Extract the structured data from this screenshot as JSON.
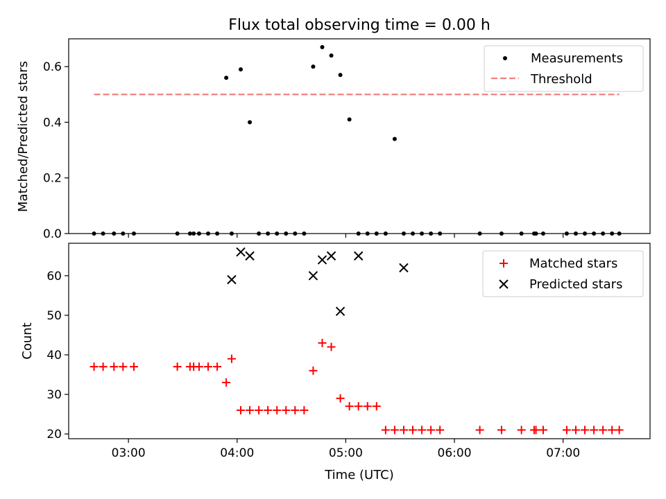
{
  "chart_data": [
    {
      "type": "scatter",
      "title": "Flux total observing time = 0.00 h",
      "xlabel": "",
      "ylabel": "Matched/Predicted stars",
      "xlim": [
        "02:27",
        "07:48"
      ],
      "ylim": [
        0,
        0.7
      ],
      "y_ticks": [
        0.0,
        0.2,
        0.4,
        0.6
      ],
      "y_tick_labels": [
        "0.0",
        "0.2",
        "0.4",
        "0.6"
      ],
      "x_ticks": [
        "03:00",
        "04:00",
        "05:00",
        "06:00",
        "07:00"
      ],
      "grid": false,
      "legend_position": "top-right",
      "series": [
        {
          "name": "Measurements",
          "marker": "dot",
          "color": "#000000",
          "x": [
            "02:41",
            "02:46",
            "02:52",
            "02:57",
            "03:03",
            "03:27",
            "03:34",
            "03:36",
            "03:39",
            "03:44",
            "03:49",
            "03:54",
            "03:57",
            "04:02",
            "04:07",
            "04:12",
            "04:17",
            "04:22",
            "04:27",
            "04:32",
            "04:37",
            "04:42",
            "04:47",
            "04:52",
            "04:57",
            "05:02",
            "05:07",
            "05:12",
            "05:17",
            "05:22",
            "05:27",
            "05:32",
            "05:37",
            "05:42",
            "05:47",
            "05:52",
            "06:14",
            "06:26",
            "06:37",
            "06:44",
            "06:45",
            "06:49",
            "07:02",
            "07:07",
            "07:12",
            "07:17",
            "07:22",
            "07:27",
            "07:31"
          ],
          "y": [
            0,
            0,
            0,
            0,
            0,
            0,
            0,
            0,
            0,
            0,
            0,
            0.56,
            0,
            0.59,
            0.4,
            0,
            0,
            0,
            0,
            0,
            0,
            0.6,
            0.67,
            0.64,
            0.57,
            0.41,
            0,
            0,
            0,
            0,
            0.34,
            0,
            0,
            0,
            0,
            0,
            0,
            0,
            0,
            0,
            0,
            0,
            0,
            0,
            0,
            0,
            0,
            0,
            0
          ]
        },
        {
          "name": "Threshold",
          "marker": "dashed-line",
          "color": "#f08080",
          "x": [
            "02:41",
            "07:31"
          ],
          "y": [
            0.5,
            0.5
          ]
        }
      ]
    },
    {
      "type": "scatter",
      "title": "",
      "xlabel": "Time (UTC)",
      "ylabel": "Count",
      "xlim": [
        "02:27",
        "07:48"
      ],
      "ylim": [
        18.8,
        68.2
      ],
      "y_ticks": [
        20,
        30,
        40,
        50,
        60
      ],
      "y_tick_labels": [
        "20",
        "30",
        "40",
        "50",
        "60"
      ],
      "x_ticks": [
        "03:00",
        "04:00",
        "05:00",
        "06:00",
        "07:00"
      ],
      "grid": false,
      "legend_position": "top-right",
      "series": [
        {
          "name": "Matched stars",
          "marker": "plus",
          "color": "#ff0000",
          "x": [
            "02:41",
            "02:46",
            "02:52",
            "02:57",
            "03:03",
            "03:27",
            "03:34",
            "03:36",
            "03:39",
            "03:44",
            "03:49",
            "03:54",
            "03:57",
            "04:02",
            "04:07",
            "04:12",
            "04:17",
            "04:22",
            "04:27",
            "04:32",
            "04:37",
            "04:42",
            "04:47",
            "04:52",
            "04:57",
            "05:02",
            "05:07",
            "05:12",
            "05:17",
            "05:22",
            "05:27",
            "05:32",
            "05:37",
            "05:42",
            "05:47",
            "05:52",
            "06:14",
            "06:26",
            "06:37",
            "06:44",
            "06:45",
            "06:49",
            "07:02",
            "07:07",
            "07:12",
            "07:17",
            "07:22",
            "07:27",
            "07:31"
          ],
          "y": [
            37,
            37,
            37,
            37,
            37,
            37,
            37,
            37,
            37,
            37,
            37,
            33,
            39,
            26,
            26,
            26,
            26,
            26,
            26,
            26,
            26,
            36,
            43,
            42,
            29,
            27,
            27,
            27,
            27,
            21,
            21,
            21,
            21,
            21,
            21,
            21,
            21,
            21,
            21,
            21,
            21,
            21,
            21,
            21,
            21,
            21,
            21,
            21,
            21
          ]
        },
        {
          "name": "Predicted stars",
          "marker": "x",
          "color": "#000000",
          "x": [
            "03:57",
            "04:02",
            "04:07",
            "04:42",
            "04:47",
            "04:52",
            "04:57",
            "05:07",
            "05:32"
          ],
          "y": [
            59,
            66,
            65,
            60,
            64,
            65,
            51,
            65,
            62
          ]
        }
      ]
    }
  ]
}
